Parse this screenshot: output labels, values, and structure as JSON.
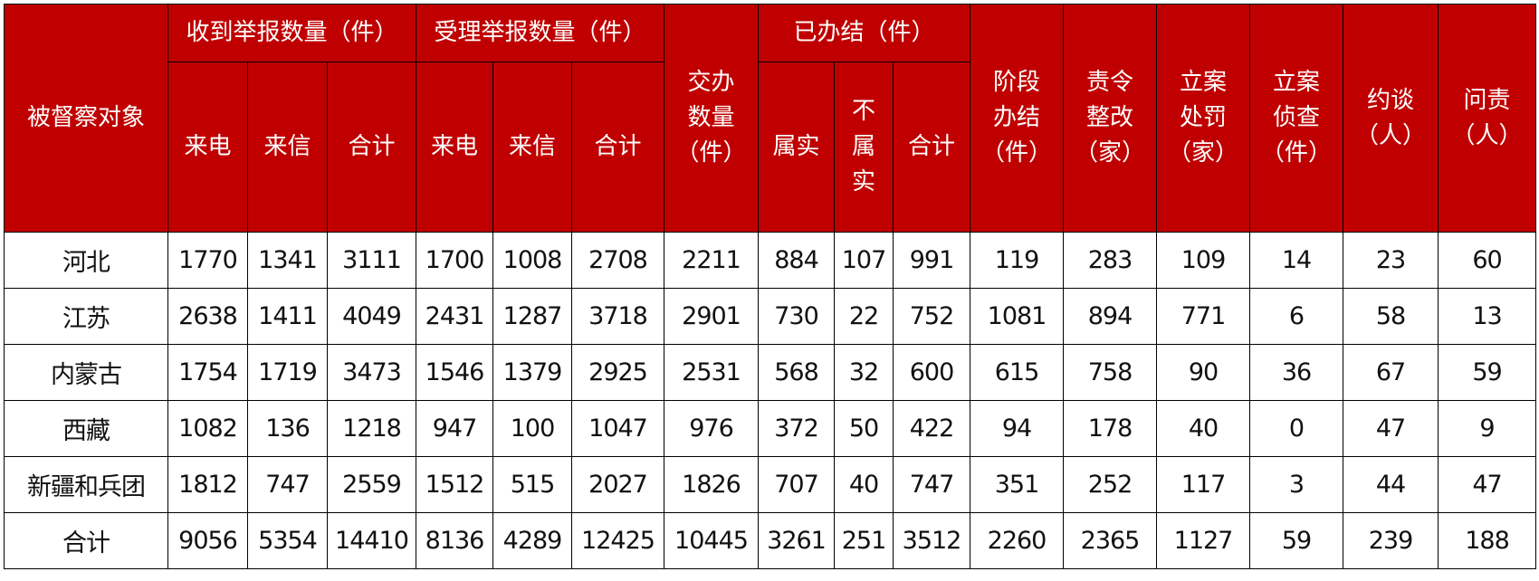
{
  "header": {
    "subject": "被督察对象",
    "received": "收到举报数量（件）",
    "accepted": "受理举报数量（件）",
    "assigned": [
      "交办",
      "数量",
      "（件）"
    ],
    "concluded": "已办结（件）",
    "stage": [
      "阶段",
      "办结",
      "（件）"
    ],
    "rectify": [
      "责令",
      "整改",
      "（家）"
    ],
    "penalty": [
      "立案",
      "处罚",
      "（家）"
    ],
    "investigate": [
      "立案",
      "侦查",
      "（件）"
    ],
    "interview": [
      "约谈",
      "（人）"
    ],
    "accountability": [
      "问责",
      "（人）"
    ],
    "phone": "来电",
    "letter": "来信",
    "total": "合计",
    "true": "属实",
    "not_true": [
      "不",
      "属",
      "实"
    ]
  },
  "rows": [
    [
      "河北",
      "1770",
      "1341",
      "3111",
      "1700",
      "1008",
      "2708",
      "2211",
      "884",
      "107",
      "991",
      "119",
      "283",
      "109",
      "14",
      "23",
      "60"
    ],
    [
      "江苏",
      "2638",
      "1411",
      "4049",
      "2431",
      "1287",
      "3718",
      "2901",
      "730",
      "22",
      "752",
      "1081",
      "894",
      "771",
      "6",
      "58",
      "13"
    ],
    [
      "内蒙古",
      "1754",
      "1719",
      "3473",
      "1546",
      "1379",
      "2925",
      "2531",
      "568",
      "32",
      "600",
      "615",
      "758",
      "90",
      "36",
      "67",
      "59"
    ],
    [
      "西藏",
      "1082",
      "136",
      "1218",
      "947",
      "100",
      "1047",
      "976",
      "372",
      "50",
      "422",
      "94",
      "178",
      "40",
      "0",
      "47",
      "9"
    ],
    [
      "新疆和兵团",
      "1812",
      "747",
      "2559",
      "1512",
      "515",
      "2027",
      "1826",
      "707",
      "40",
      "747",
      "351",
      "252",
      "117",
      "3",
      "44",
      "47"
    ],
    [
      "合计",
      "9056",
      "5354",
      "14410",
      "8136",
      "4289",
      "12425",
      "10445",
      "3261",
      "251",
      "3512",
      "2260",
      "2365",
      "1127",
      "59",
      "239",
      "188"
    ]
  ],
  "colors": {
    "header_bg": "#c00000",
    "header_text": "#ffffff"
  }
}
